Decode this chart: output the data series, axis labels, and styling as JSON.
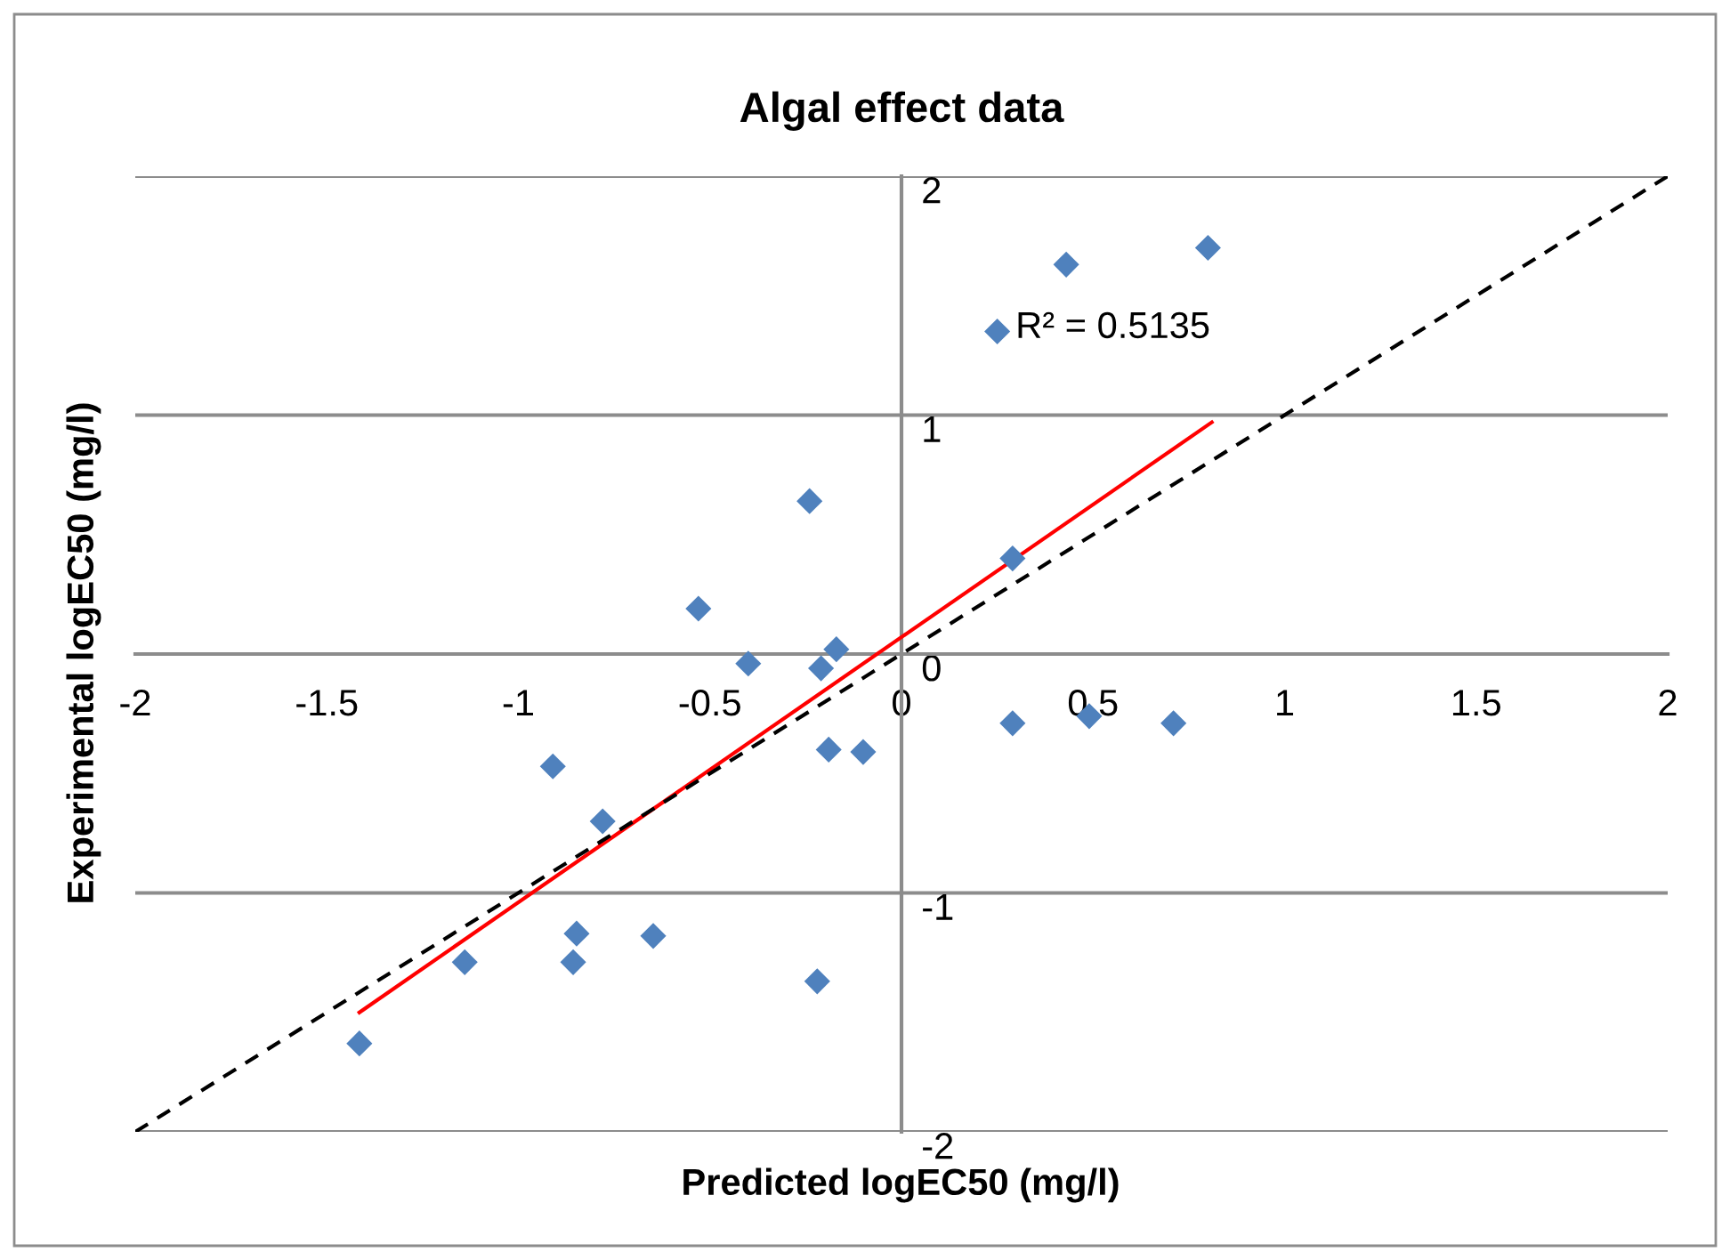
{
  "chart_data": {
    "type": "scatter",
    "title": "Algal effect data",
    "xlabel": "Predicted logEC50 (mg/l)",
    "ylabel": "Experimental logEC50 (mg/l)",
    "xlim": [
      -2,
      2
    ],
    "ylim": [
      -2,
      2
    ],
    "xticks": [
      -2,
      -1.5,
      -1,
      -0.5,
      0,
      0.5,
      1,
      1.5,
      2
    ],
    "yticks": [
      -2,
      -1,
      0,
      1,
      2
    ],
    "grid": "y",
    "legend": false,
    "marker": "diamond",
    "series": [
      {
        "color": "#4f81bd",
        "x": [
          -1.415,
          -1.14,
          -0.857,
          -0.848,
          -0.648,
          -0.22,
          -0.78,
          -0.91,
          -0.53,
          -0.4,
          -0.24,
          -0.21,
          -0.17,
          -0.19,
          -0.1,
          0.25,
          0.43,
          0.8,
          0.29,
          0.29,
          0.49,
          0.71
        ],
        "values": [
          -1.63,
          -1.29,
          -1.29,
          -1.17,
          -1.18,
          -1.37,
          -0.7,
          -0.47,
          0.19,
          -0.04,
          0.64,
          -0.06,
          0.02,
          -0.4,
          -0.41,
          1.35,
          1.63,
          1.7,
          0.4,
          -0.29,
          -0.26,
          -0.29
        ]
      },
      {
        "type": "line",
        "color": "#ff0000",
        "line_style": "solid",
        "marker": "none",
        "x": [
          -1.415,
          0.81
        ],
        "values": [
          -1.5,
          0.97
        ]
      },
      {
        "type": "line",
        "color": "#000000",
        "line_style": "dashed",
        "marker": "none",
        "x": [
          -2,
          2
        ],
        "values": [
          -2,
          2
        ]
      }
    ],
    "annotations": [
      {
        "text": "R² = 0.5135",
        "x": 0.81,
        "y": 0.97
      }
    ]
  }
}
